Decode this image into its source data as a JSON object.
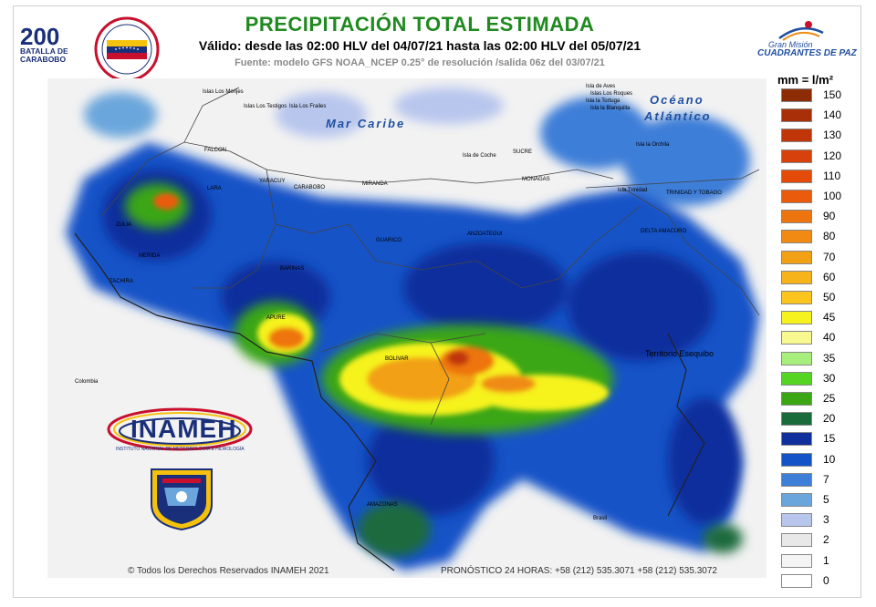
{
  "header": {
    "title": "PRECIPITACIÓN TOTAL ESTIMADA",
    "validity": "Válido: desde las 02:00 HLV del 04/07/21 hasta las 02:00 HLV del 05/07/21",
    "source": "Fuente: modelo GFS NOAA_NCEP 0.25° de resolución /salida 06z del 03/07/21"
  },
  "logos": {
    "bicentenario_number": "200",
    "bicentenario_text1": "BATALLA DE",
    "bicentenario_text2": "CARABOBO",
    "gran_mision_line1": "Gran Misión",
    "gran_mision_line2": "CUADRANTES DE PAZ",
    "inameh_word": "INAMEH",
    "inameh_sub": "INSTITUTO NACIONAL DE METEOROLOGÍA E HIDROLOGÍA"
  },
  "map": {
    "sea_caribe": "Mar Caribe",
    "ocean_line1": "Océano",
    "ocean_line2": "Atlántico",
    "territory": "Territorio Esequibo",
    "labels": {
      "isla_aves": "Isla de Aves",
      "los_roques": "Islas Los Roques",
      "isla_tortuga": "Isla la Tortuga",
      "isla_blanquilla": "Isla la Blanquilla",
      "los_monjes": "Islas Los Monjes",
      "los_testigos": "Islas Los Testigos",
      "los_frailes": "Isla Los Frailes",
      "isla_orchila": "Isla la Orchila",
      "isla_coche": "Isla de Coche",
      "isla_trinidad": "Isla Trinidad",
      "trinidad_tobago": "TRINIDAD Y TOBAGO",
      "falcon": "FALCON",
      "lara": "LARA",
      "yaracuy": "YARACUY",
      "carabobo": "CARABOBO",
      "miranda": "MIRANDA",
      "sucre": "SUCRE",
      "monagas": "MONAGAS",
      "delta": "DELTA AMACURO",
      "bolivar": "BOLIVAR",
      "apure": "APURE",
      "barinas": "BARINAS",
      "tachira": "TACHIRA",
      "zulia": "ZULIA",
      "merida": "MERIDA",
      "amazonas": "AMAZONAS",
      "guarico": "GUARICO",
      "anzoategui": "ANZOATEGUI",
      "brasil": "Brasil",
      "colombia": "Colombia"
    }
  },
  "legend": {
    "unit": "mm = l/m²",
    "levels": [
      {
        "value": "150",
        "color": "#8b2c05"
      },
      {
        "value": "140",
        "color": "#a82f08"
      },
      {
        "value": "130",
        "color": "#c03609"
      },
      {
        "value": "120",
        "color": "#d7410b"
      },
      {
        "value": "110",
        "color": "#e54b08"
      },
      {
        "value": "100",
        "color": "#ea5b0c"
      },
      {
        "value": "90",
        "color": "#ee7410"
      },
      {
        "value": "80",
        "color": "#f08a12"
      },
      {
        "value": "70",
        "color": "#f2a014"
      },
      {
        "value": "60",
        "color": "#f7b31a"
      },
      {
        "value": "50",
        "color": "#fcc51e"
      },
      {
        "value": "45",
        "color": "#f6f21e"
      },
      {
        "value": "40",
        "color": "#f8f890"
      },
      {
        "value": "35",
        "color": "#a8ee7c"
      },
      {
        "value": "30",
        "color": "#55d424"
      },
      {
        "value": "25",
        "color": "#3aa614"
      },
      {
        "value": "20",
        "color": "#1a6b3c"
      },
      {
        "value": "15",
        "color": "#0e2f9c"
      },
      {
        "value": "10",
        "color": "#1453c7"
      },
      {
        "value": "7",
        "color": "#3c7ed8"
      },
      {
        "value": "5",
        "color": "#6aa6dc"
      },
      {
        "value": "3",
        "color": "#b8c6ee"
      },
      {
        "value": "2",
        "color": "#e8e8e8"
      },
      {
        "value": "1",
        "color": "#f4f4f4"
      },
      {
        "value": "0",
        "color": "#ffffff"
      }
    ]
  },
  "footer": {
    "copyright": "© Todos los Derechos Reservados INAMEH 2021",
    "forecast": "PRONÓSTICO 24 HORAS: +58 (212) 535.3071 +58 (212) 535.3072"
  }
}
